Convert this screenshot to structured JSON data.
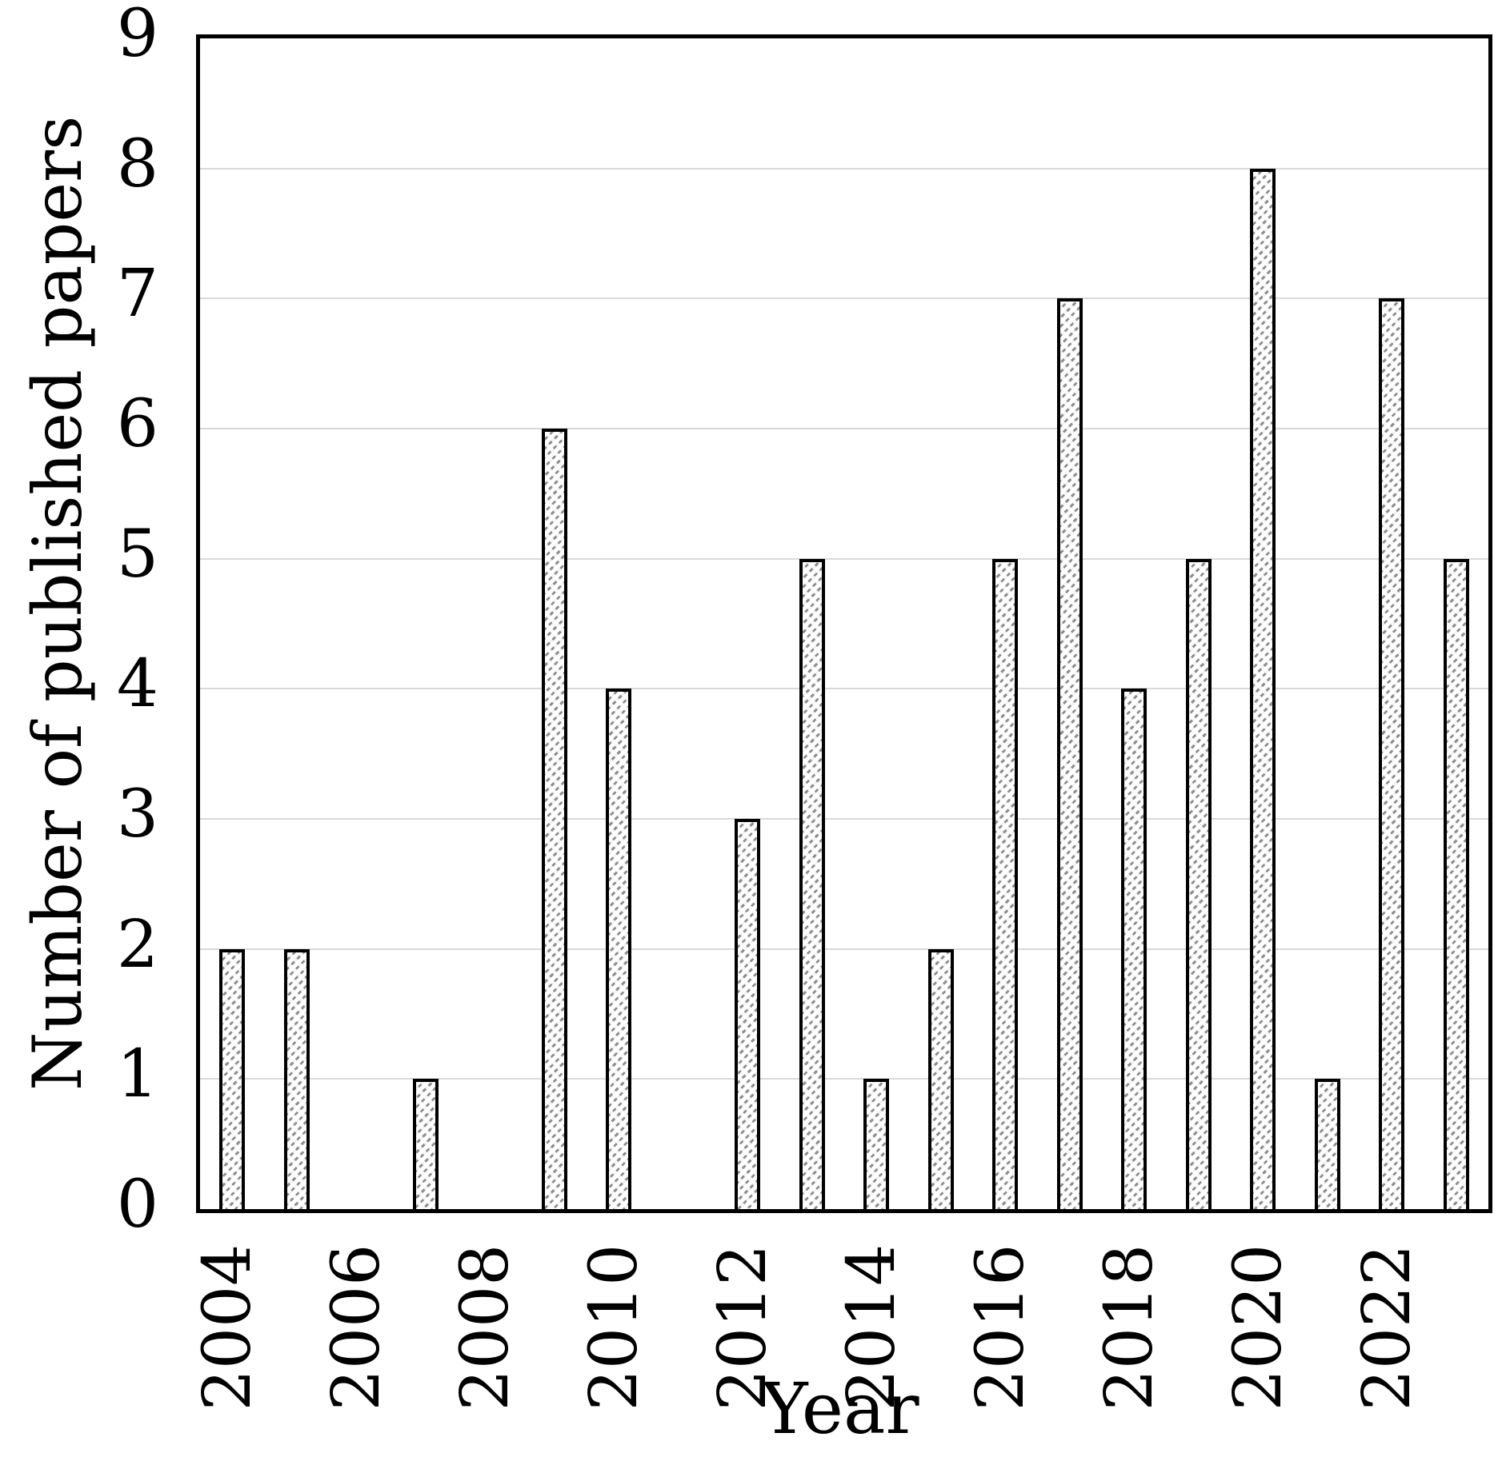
{
  "chart_data": {
    "type": "bar",
    "title": "",
    "xlabel": "Year",
    "ylabel": "Number of published papers",
    "categories": [
      "2004",
      "2005",
      "2006",
      "2007",
      "2008",
      "2009",
      "2010",
      "2011",
      "2012",
      "2013",
      "2014",
      "2015",
      "2016",
      "2017",
      "2018",
      "2019",
      "2020",
      "2021",
      "2022",
      "2023"
    ],
    "values": [
      2,
      2,
      0,
      1,
      0,
      6,
      4,
      0,
      3,
      5,
      1,
      2,
      5,
      7,
      4,
      5,
      8,
      1,
      7,
      5
    ],
    "x_tick_labels": [
      "2004",
      "2006",
      "2008",
      "2010",
      "2012",
      "2014",
      "2016",
      "2018",
      "2020",
      "2022"
    ],
    "x_tick_step": 2,
    "y_ticks": [
      "0",
      "1",
      "2",
      "3",
      "4",
      "5",
      "6",
      "7",
      "8",
      "9"
    ],
    "ylim": [
      0,
      9
    ],
    "grid": "horizontal",
    "legend": "none",
    "bar_pattern": "light-upward-diagonal-hatch",
    "colors": {
      "background": "#ffffff",
      "bar_fill": "#ffffff",
      "bar_hatch": "#8f8f8f",
      "bar_border": "#000000",
      "gridline": "#d9d9d9",
      "axis_border": "#000000",
      "text": "#000000"
    }
  }
}
